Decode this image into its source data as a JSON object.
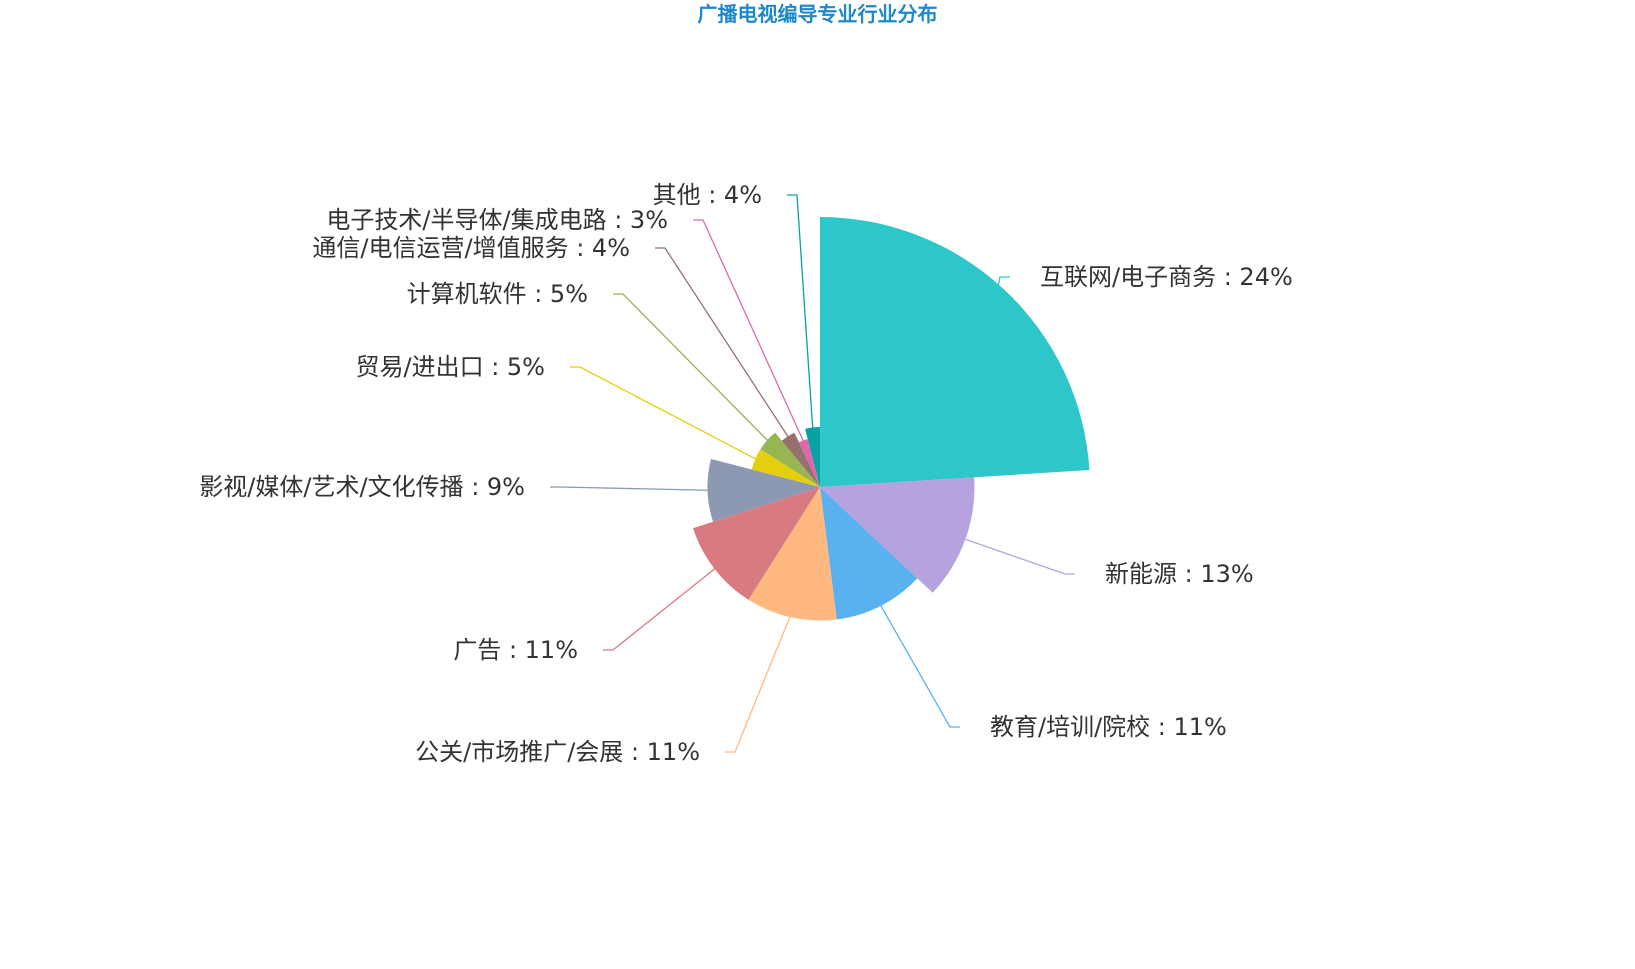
{
  "chart_data": {
    "type": "pie",
    "variant": "nightingale-rose",
    "title": "广播电视编导专业行业分布",
    "title_color": "#1e88c9",
    "slices": [
      {
        "label": "互联网/电子商务 : 24%",
        "value": 24,
        "color": "#2ec7c9"
      },
      {
        "label": "新能源 : 13%",
        "value": 13,
        "color": "#b6a2de"
      },
      {
        "label": "教育/培训/院校 : 11%",
        "value": 11,
        "color": "#5ab1ef"
      },
      {
        "label": "公关/市场推广/会展 : 11%",
        "value": 11,
        "color": "#ffb980"
      },
      {
        "label": "广告 : 11%",
        "value": 11,
        "color": "#d87a80"
      },
      {
        "label": "影视/媒体/艺术/文化传播 : 9%",
        "value": 9,
        "color": "#8d98b3"
      },
      {
        "label": "贸易/进出口 : 5%",
        "value": 5,
        "color": "#e5cf0d"
      },
      {
        "label": "计算机软件 : 5%",
        "value": 5,
        "color": "#97b552"
      },
      {
        "label": "通信/电信运营/增值服务 : 4%",
        "value": 4,
        "color": "#95706d"
      },
      {
        "label": "电子技术/半导体/集成电路 : 3%",
        "value": 3,
        "color": "#dc69aa"
      },
      {
        "label": "其他 : 4%",
        "value": 4,
        "color": "#07a2a4"
      }
    ]
  }
}
